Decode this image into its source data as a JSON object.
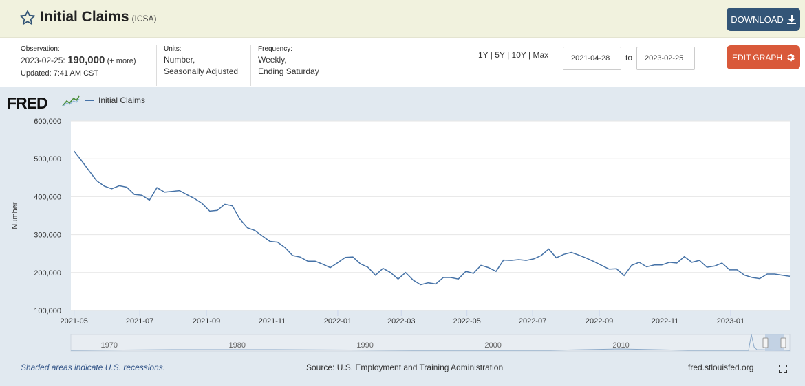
{
  "header": {
    "title": "Initial Claims",
    "series_id": "(ICSA)",
    "download_label": "DOWNLOAD",
    "edit_graph_label": "EDIT GRAPH"
  },
  "info": {
    "observation_label": "Observation:",
    "observation_date": "2023-02-25:",
    "observation_value": "190,000",
    "more_label": "(+ more)",
    "updated": "Updated: 7:41 AM CST",
    "units_label": "Units:",
    "units_line1": "Number,",
    "units_line2": "Seasonally Adjusted",
    "frequency_label": "Frequency:",
    "frequency_line1": "Weekly,",
    "frequency_line2": "Ending Saturday"
  },
  "range": {
    "options": [
      "1Y",
      "5Y",
      "10Y",
      "Max"
    ],
    "start_date": "2021-04-28",
    "to_label": "to",
    "end_date": "2023-02-25"
  },
  "legend_label": "Initial Claims",
  "fred_logo": "FRED",
  "footer": {
    "recession_note": "Shaded areas indicate U.S. recessions.",
    "source": "Source: U.S. Employment and Training Administration",
    "site": "fred.stlouisfed.org"
  },
  "colors": {
    "line": "#4572a7",
    "download_btn": "#335577",
    "edit_btn": "#d9593a",
    "header_bg": "#f1f2de",
    "chart_bg": "#e1e9f0"
  },
  "icons": {
    "favorite": "star-icon",
    "download": "download-icon",
    "edit": "gear-icon",
    "fullscreen": "fullscreen-icon"
  },
  "chart_data": {
    "type": "line",
    "ylabel": "Number",
    "ylim": [
      100000,
      600000
    ],
    "y_ticks": [
      100000,
      200000,
      300000,
      400000,
      500000,
      600000
    ],
    "y_tick_labels": [
      "100,000",
      "200,000",
      "300,000",
      "400,000",
      "500,000",
      "600,000"
    ],
    "x_tick_labels": [
      "2021-05",
      "2021-07",
      "2021-09",
      "2021-11",
      "2022-01",
      "2022-03",
      "2022-05",
      "2022-07",
      "2022-09",
      "2022-11",
      "2023-01"
    ],
    "xlim": [
      "2021-04-28",
      "2023-02-25"
    ],
    "grid": true,
    "legend": "top-left",
    "series": [
      {
        "name": "Initial Claims",
        "x": [
          "2021-05-01",
          "2021-05-08",
          "2021-05-15",
          "2021-05-22",
          "2021-05-29",
          "2021-06-05",
          "2021-06-12",
          "2021-06-19",
          "2021-06-26",
          "2021-07-03",
          "2021-07-10",
          "2021-07-17",
          "2021-07-24",
          "2021-07-31",
          "2021-08-07",
          "2021-08-14",
          "2021-08-21",
          "2021-08-28",
          "2021-09-04",
          "2021-09-11",
          "2021-09-18",
          "2021-09-25",
          "2021-10-02",
          "2021-10-09",
          "2021-10-16",
          "2021-10-23",
          "2021-10-30",
          "2021-11-06",
          "2021-11-13",
          "2021-11-20",
          "2021-11-27",
          "2021-12-04",
          "2021-12-11",
          "2021-12-18",
          "2021-12-25",
          "2022-01-01",
          "2022-01-08",
          "2022-01-15",
          "2022-01-22",
          "2022-01-29",
          "2022-02-05",
          "2022-02-12",
          "2022-02-19",
          "2022-02-26",
          "2022-03-05",
          "2022-03-12",
          "2022-03-19",
          "2022-03-26",
          "2022-04-02",
          "2022-04-09",
          "2022-04-16",
          "2022-04-23",
          "2022-04-30",
          "2022-05-07",
          "2022-05-14",
          "2022-05-21",
          "2022-05-28",
          "2022-06-04",
          "2022-06-11",
          "2022-06-18",
          "2022-06-25",
          "2022-07-02",
          "2022-07-09",
          "2022-07-16",
          "2022-07-23",
          "2022-07-30",
          "2022-08-06",
          "2022-08-13",
          "2022-08-20",
          "2022-08-27",
          "2022-09-03",
          "2022-09-10",
          "2022-09-17",
          "2022-09-24",
          "2022-10-01",
          "2022-10-08",
          "2022-10-15",
          "2022-10-22",
          "2022-10-29",
          "2022-11-05",
          "2022-11-12",
          "2022-11-19",
          "2022-11-26",
          "2022-12-03",
          "2022-12-10",
          "2022-12-17",
          "2022-12-24",
          "2022-12-31",
          "2023-01-07",
          "2023-01-14",
          "2023-01-21",
          "2023-01-28",
          "2023-02-04",
          "2023-02-11",
          "2023-02-18",
          "2023-02-25"
        ],
        "values": [
          520000,
          495000,
          468000,
          442000,
          428000,
          421000,
          429000,
          425000,
          406000,
          404000,
          391000,
          424000,
          412000,
          414000,
          416000,
          405000,
          395000,
          382000,
          362000,
          364000,
          380000,
          376000,
          341000,
          318000,
          311000,
          296000,
          282000,
          280000,
          266000,
          245000,
          241000,
          230000,
          230000,
          222000,
          213000,
          226000,
          240000,
          241000,
          223000,
          214000,
          193000,
          211000,
          200000,
          183000,
          200000,
          180000,
          168000,
          173000,
          170000,
          187000,
          187000,
          183000,
          203000,
          198000,
          219000,
          213000,
          203000,
          233000,
          232000,
          234000,
          232000,
          236000,
          245000,
          262000,
          239000,
          248000,
          253000,
          246000,
          238000,
          229000,
          219000,
          209000,
          210000,
          192000,
          219000,
          227000,
          215000,
          220000,
          220000,
          227000,
          225000,
          242000,
          227000,
          232000,
          214000,
          217000,
          225000,
          207000,
          207000,
          193000,
          187000,
          184000,
          196000,
          196000,
          193000,
          190000
        ]
      }
    ]
  },
  "navigator": {
    "x_tick_labels": [
      "1970",
      "1980",
      "1990",
      "2000",
      "2010"
    ]
  }
}
